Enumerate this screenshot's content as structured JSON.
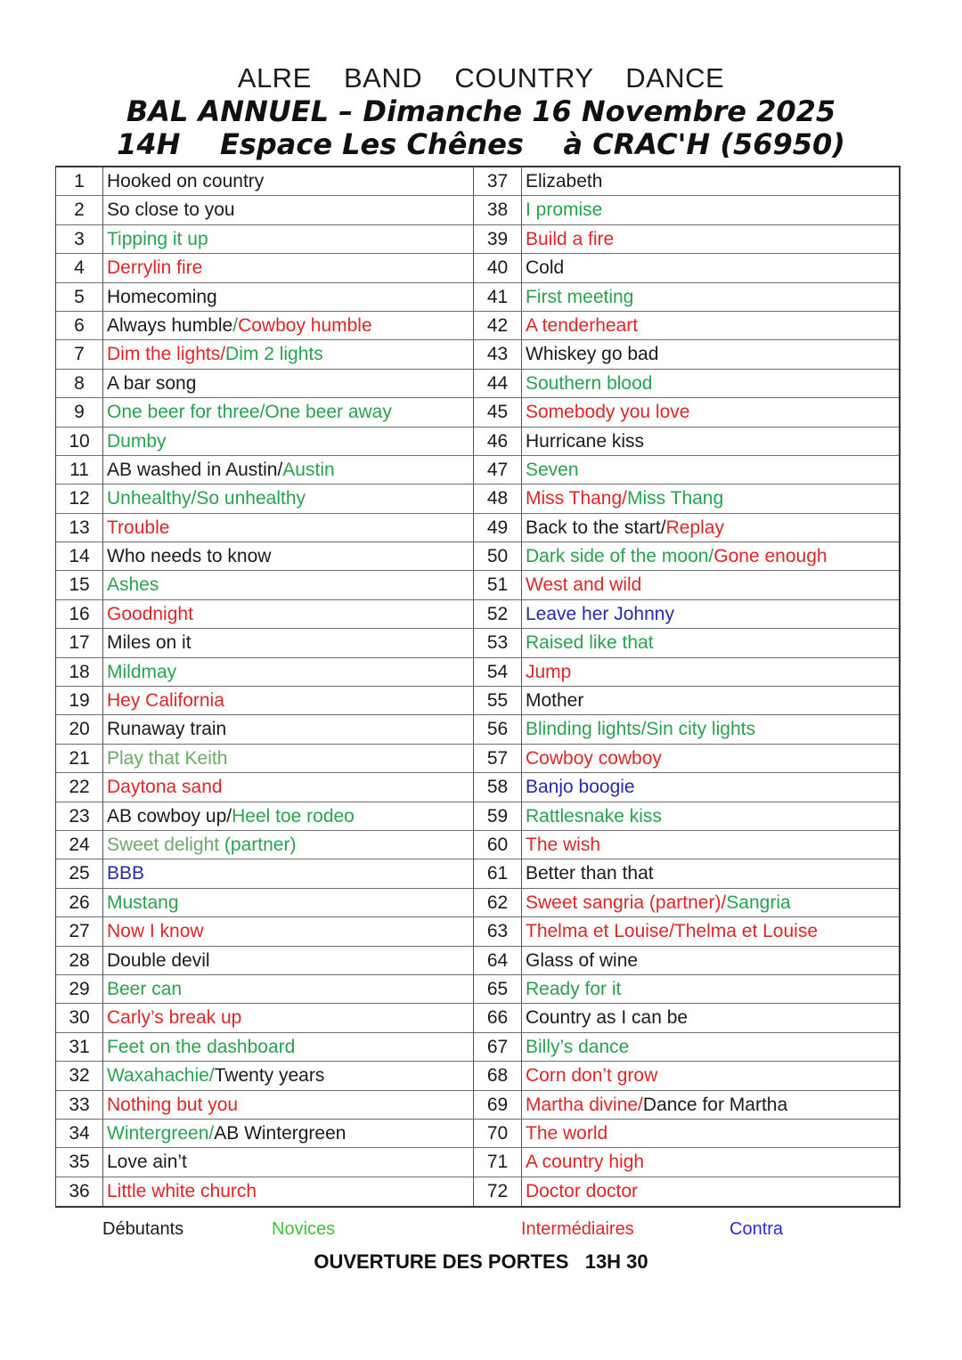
{
  "palette": {
    "black": "#1b1b1b",
    "green": "#29a24e",
    "light_green": "#6aaa66",
    "red": "#df2626",
    "blue": "#2929ac",
    "legend_green": "#3cc33c",
    "legend_blue": "#2b2bd8",
    "border": "#6e6e6e"
  },
  "header": {
    "line1": "ALRE  BAND  COUNTRY  DANCE",
    "line2": "BAL ANNUEL – Dimanche 16 Novembre 2025",
    "line3": "14H    Espace Les Chênes    à CRAC'H (56950)"
  },
  "table": {
    "rows": [
      {
        "num": "1",
        "segments": [
          {
            "text": "Hooked on country",
            "color": "black"
          }
        ]
      },
      {
        "num": "2",
        "segments": [
          {
            "text": "So close to you",
            "color": "black"
          }
        ]
      },
      {
        "num": "3",
        "segments": [
          {
            "text": "Tipping it up",
            "color": "green"
          }
        ]
      },
      {
        "num": "4",
        "segments": [
          {
            "text": "Derrylin fire",
            "color": "red"
          }
        ]
      },
      {
        "num": "5",
        "segments": [
          {
            "text": "Homecoming",
            "color": "black"
          }
        ]
      },
      {
        "num": "6",
        "segments": [
          {
            "text": "Always humble",
            "color": "black"
          },
          {
            "text": "/",
            "color": "green"
          },
          {
            "text": "Cowboy humble",
            "color": "red"
          }
        ]
      },
      {
        "num": "7",
        "segments": [
          {
            "text": "Dim the lights/",
            "color": "red"
          },
          {
            "text": "Dim 2 lights",
            "color": "green"
          }
        ]
      },
      {
        "num": "8",
        "segments": [
          {
            "text": "A bar song",
            "color": "black"
          }
        ]
      },
      {
        "num": "9",
        "segments": [
          {
            "text": "One beer for three/One beer away",
            "color": "green"
          }
        ]
      },
      {
        "num": "10",
        "segments": [
          {
            "text": "Dumby",
            "color": "green"
          }
        ]
      },
      {
        "num": "11",
        "segments": [
          {
            "text": "AB washed in Austin/",
            "color": "black"
          },
          {
            "text": "Austin",
            "color": "green"
          }
        ]
      },
      {
        "num": "12",
        "segments": [
          {
            "text": "Unhealthy/So unhealthy",
            "color": "green"
          }
        ]
      },
      {
        "num": "13",
        "segments": [
          {
            "text": "Trouble",
            "color": "red"
          }
        ]
      },
      {
        "num": "14",
        "segments": [
          {
            "text": "Who needs to know",
            "color": "black"
          }
        ]
      },
      {
        "num": "15",
        "segments": [
          {
            "text": "Ashes",
            "color": "green"
          }
        ]
      },
      {
        "num": "16",
        "segments": [
          {
            "text": "Goodnight",
            "color": "red"
          }
        ]
      },
      {
        "num": "17",
        "segments": [
          {
            "text": "Miles on it",
            "color": "black"
          }
        ]
      },
      {
        "num": "18",
        "segments": [
          {
            "text": "Mildmay",
            "color": "green"
          }
        ]
      },
      {
        "num": "19",
        "segments": [
          {
            "text": "Hey California",
            "color": "red"
          }
        ]
      },
      {
        "num": "20",
        "segments": [
          {
            "text": "Runaway train",
            "color": "black"
          }
        ]
      },
      {
        "num": "21",
        "segments": [
          {
            "text": "Play that Keith",
            "color": "light_green"
          }
        ]
      },
      {
        "num": "22",
        "segments": [
          {
            "text": "Daytona sand",
            "color": "red"
          }
        ]
      },
      {
        "num": "23",
        "segments": [
          {
            "text": "AB cowboy up/",
            "color": "black"
          },
          {
            "text": "Heel toe rodeo",
            "color": "green"
          }
        ]
      },
      {
        "num": "24",
        "segments": [
          {
            "text": "Sweet delight ",
            "color": "light_green"
          },
          {
            "text": "(partner)",
            "color": "green"
          }
        ]
      },
      {
        "num": "25",
        "segments": [
          {
            "text": "BBB",
            "color": "blue"
          }
        ]
      },
      {
        "num": "26",
        "segments": [
          {
            "text": "Mustang",
            "color": "green"
          }
        ]
      },
      {
        "num": "27",
        "segments": [
          {
            "text": "Now I know",
            "color": "red"
          }
        ]
      },
      {
        "num": "28",
        "segments": [
          {
            "text": "Double devil",
            "color": "black"
          }
        ]
      },
      {
        "num": "29",
        "segments": [
          {
            "text": "Beer can",
            "color": "green"
          }
        ]
      },
      {
        "num": "30",
        "segments": [
          {
            "text": "Carly’s break up",
            "color": "red"
          }
        ]
      },
      {
        "num": "31",
        "segments": [
          {
            "text": "Feet on the dashboard",
            "color": "green"
          }
        ]
      },
      {
        "num": "32",
        "segments": [
          {
            "text": "Waxahachie/",
            "color": "green"
          },
          {
            "text": "Twenty years",
            "color": "black"
          }
        ]
      },
      {
        "num": "33",
        "segments": [
          {
            "text": "Nothing but you",
            "color": "red"
          }
        ]
      },
      {
        "num": "34",
        "segments": [
          {
            "text": "Wintergreen/",
            "color": "green"
          },
          {
            "text": "AB Wintergreen",
            "color": "black"
          }
        ]
      },
      {
        "num": "35",
        "segments": [
          {
            "text": "Love ain’t",
            "color": "black"
          }
        ]
      },
      {
        "num": "36",
        "segments": [
          {
            "text": "Little white church",
            "color": "red"
          }
        ]
      },
      {
        "num": "37",
        "segments": [
          {
            "text": "Elizabeth",
            "color": "black"
          }
        ]
      },
      {
        "num": "38",
        "segments": [
          {
            "text": "I promise",
            "color": "green"
          }
        ]
      },
      {
        "num": "39",
        "segments": [
          {
            "text": "Build a fire",
            "color": "red"
          }
        ]
      },
      {
        "num": "40",
        "segments": [
          {
            "text": "Cold",
            "color": "black"
          }
        ]
      },
      {
        "num": "41",
        "segments": [
          {
            "text": "First meeting",
            "color": "green"
          }
        ]
      },
      {
        "num": "42",
        "segments": [
          {
            "text": "A tenderheart",
            "color": "red"
          }
        ]
      },
      {
        "num": "43",
        "segments": [
          {
            "text": "Whiskey go bad",
            "color": "black"
          }
        ]
      },
      {
        "num": "44",
        "segments": [
          {
            "text": "Southern blood",
            "color": "green"
          }
        ]
      },
      {
        "num": "45",
        "segments": [
          {
            "text": "Somebody you love",
            "color": "red"
          }
        ]
      },
      {
        "num": "46",
        "segments": [
          {
            "text": "Hurricane kiss",
            "color": "black"
          }
        ]
      },
      {
        "num": "47",
        "segments": [
          {
            "text": "Seven",
            "color": "green"
          }
        ]
      },
      {
        "num": "48",
        "segments": [
          {
            "text": "Miss Thang/",
            "color": "red"
          },
          {
            "text": "Miss Thang",
            "color": "green"
          }
        ]
      },
      {
        "num": "49",
        "segments": [
          {
            "text": "Back to the start/",
            "color": "black"
          },
          {
            "text": "Replay",
            "color": "red"
          }
        ]
      },
      {
        "num": "50",
        "segments": [
          {
            "text": "Dark side of the moon/",
            "color": "green"
          },
          {
            "text": "Gone enough",
            "color": "red"
          }
        ]
      },
      {
        "num": "51",
        "segments": [
          {
            "text": "West and wild",
            "color": "red"
          }
        ]
      },
      {
        "num": "52",
        "segments": [
          {
            "text": "Leave her Johnny",
            "color": "blue"
          }
        ]
      },
      {
        "num": "53",
        "segments": [
          {
            "text": "Raised like that",
            "color": "green"
          }
        ]
      },
      {
        "num": "54",
        "segments": [
          {
            "text": "Jump",
            "color": "red"
          }
        ]
      },
      {
        "num": "55",
        "segments": [
          {
            "text": "Mother",
            "color": "black"
          }
        ]
      },
      {
        "num": "56",
        "segments": [
          {
            "text": "Blinding lights/Sin city lights",
            "color": "green"
          }
        ]
      },
      {
        "num": "57",
        "segments": [
          {
            "text": "Cowboy cowboy",
            "color": "red"
          }
        ]
      },
      {
        "num": "58",
        "segments": [
          {
            "text": "Banjo boogie",
            "color": "blue"
          }
        ]
      },
      {
        "num": "59",
        "segments": [
          {
            "text": "Rattlesnake kiss",
            "color": "green"
          }
        ]
      },
      {
        "num": "60",
        "segments": [
          {
            "text": "The wish",
            "color": "red"
          }
        ]
      },
      {
        "num": "61",
        "segments": [
          {
            "text": "Better than that",
            "color": "black"
          }
        ]
      },
      {
        "num": "62",
        "segments": [
          {
            "text": "Sweet sangria (partner)/",
            "color": "red"
          },
          {
            "text": "Sangria",
            "color": "green"
          }
        ]
      },
      {
        "num": "63",
        "segments": [
          {
            "text": "Thelma et Louise/Thelma et Louise",
            "color": "red"
          }
        ]
      },
      {
        "num": "64",
        "segments": [
          {
            "text": "Glass of wine",
            "color": "black"
          }
        ]
      },
      {
        "num": "65",
        "segments": [
          {
            "text": "Ready for it",
            "color": "green"
          }
        ]
      },
      {
        "num": "66",
        "segments": [
          {
            "text": "Country as I can be",
            "color": "black"
          }
        ]
      },
      {
        "num": "67",
        "segments": [
          {
            "text": "Billy’s dance",
            "color": "green"
          }
        ]
      },
      {
        "num": "68",
        "segments": [
          {
            "text": "Corn don’t grow",
            "color": "red"
          }
        ]
      },
      {
        "num": "69",
        "segments": [
          {
            "text": "Martha divine/",
            "color": "red"
          },
          {
            "text": "Dance for Martha",
            "color": "black"
          }
        ]
      },
      {
        "num": "70",
        "segments": [
          {
            "text": "The world",
            "color": "red"
          }
        ]
      },
      {
        "num": "71",
        "segments": [
          {
            "text": "A country high",
            "color": "red"
          }
        ]
      },
      {
        "num": "72",
        "segments": [
          {
            "text": "Doctor doctor",
            "color": "red"
          }
        ]
      }
    ]
  },
  "legend": {
    "items": [
      {
        "label": "Débutants",
        "color": "black"
      },
      {
        "label": "Novices",
        "color": "legend_green"
      },
      {
        "label": "Intermédiaires",
        "color": "red"
      },
      {
        "label": "Contra",
        "color": "legend_blue"
      }
    ]
  },
  "footer": {
    "text": "OUVERTURE DES PORTES   13H 30"
  }
}
